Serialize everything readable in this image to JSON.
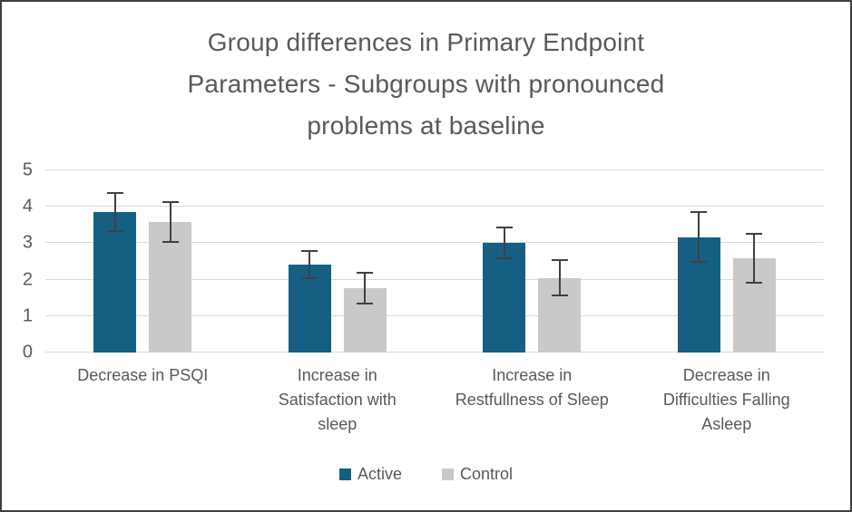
{
  "chart_data": {
    "type": "bar",
    "title": "Group differences in Primary Endpoint Parameters - Subgroups with pronounced problems at baseline",
    "title_lines": [
      "Group differences in Primary Endpoint",
      "Parameters - Subgroups with pronounced",
      "problems at baseline"
    ],
    "categories": [
      "Decrease in PSQI",
      "Increase in Satisfaction with sleep",
      "Increase in Restfullness of Sleep",
      "Decrease in Difficulties Falling Asleep"
    ],
    "category_label_lines": [
      [
        "Decrease in PSQI"
      ],
      [
        "Increase in",
        "Satisfaction with",
        "sleep"
      ],
      [
        "Increase in",
        "Restfullness of Sleep"
      ],
      [
        "Decrease in",
        "Difficulties Falling",
        "Asleep"
      ]
    ],
    "series": [
      {
        "name": "Active",
        "color": "#156082",
        "values": [
          3.85,
          2.42,
          3.0,
          3.17
        ],
        "error_bars": [
          0.55,
          0.4,
          0.45,
          0.72
        ]
      },
      {
        "name": "Control",
        "color": "#c9c9c9",
        "values": [
          3.58,
          1.76,
          2.05,
          2.58
        ],
        "error_bars": [
          0.58,
          0.45,
          0.5,
          0.7
        ]
      }
    ],
    "xlabel": "",
    "ylabel": "",
    "ylim": [
      0,
      5
    ],
    "yticks": [
      0,
      1,
      2,
      3,
      4,
      5
    ],
    "grid": "horizontal",
    "legend_position": "bottom",
    "error_bar_color": "#404040",
    "gridline_color": "#d9d9d9",
    "text_color": "#595959",
    "background_color": "#ffffff",
    "border_color": "#3f3f3f"
  }
}
